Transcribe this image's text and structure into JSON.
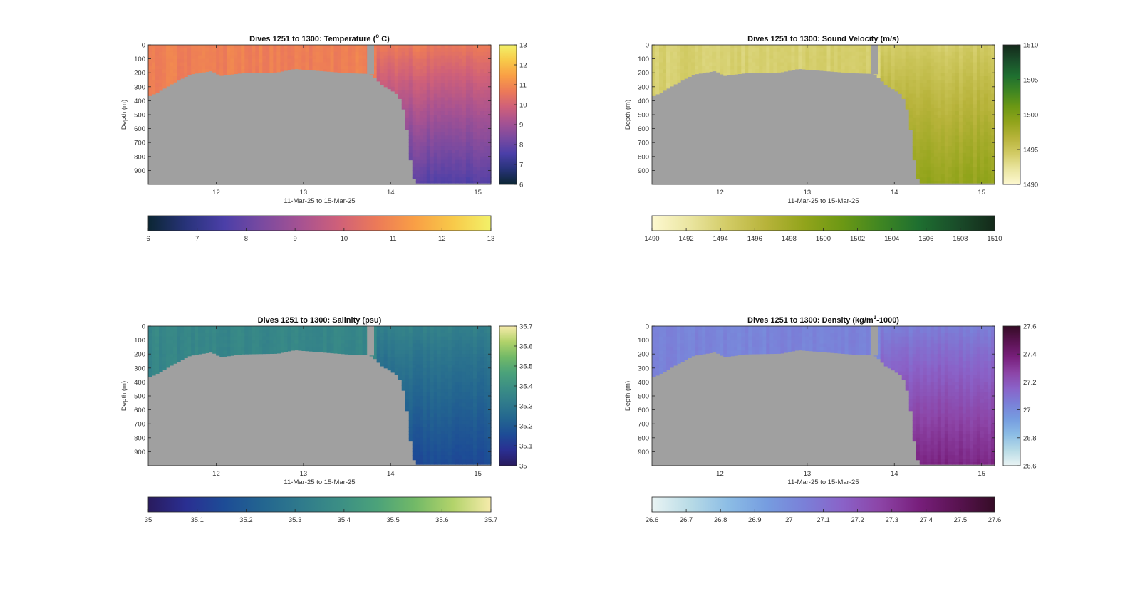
{
  "figure": {
    "xlabel": "11-Mar-25 to 15-Mar-25",
    "ylabel": "Depth (m)",
    "land_color": "#a0a0a0"
  },
  "chart_data": [
    {
      "id": "temp",
      "type": "heatmap",
      "title": "Dives 1251 to 1300: Temperature (",
      "title_sup": "o",
      "title_after": " C)",
      "xlabel": "11-Mar-25 to 15-Mar-25",
      "ylabel": "Depth (m)",
      "xlim": [
        11.22,
        15.15
      ],
      "ylim": [
        0,
        1000
      ],
      "xticks": [
        "12",
        "13",
        "14",
        "15"
      ],
      "yticks": [
        "0",
        "100",
        "200",
        "300",
        "400",
        "500",
        "600",
        "700",
        "800",
        "900"
      ],
      "colormap": [
        "#0b2633",
        "#28337a",
        "#4b3fa8",
        "#7a4aa0",
        "#a65292",
        "#cf6079",
        "#ec7a58",
        "#f99f45",
        "#f8c949",
        "#f2f169"
      ],
      "clim": [
        6,
        13
      ],
      "cbar_ticks": [
        "6",
        "7",
        "8",
        "9",
        "10",
        "11",
        "12",
        "13"
      ],
      "hbar_ticks": [
        "6",
        "7",
        "8",
        "9",
        "10",
        "11",
        "12",
        "13"
      ],
      "profile": {
        "surface": 10.7,
        "deep": 7.7,
        "left_surface": 10.8
      }
    },
    {
      "id": "sv",
      "type": "heatmap",
      "title": "Dives 1251 to 1300: Sound Velocity (m/s)",
      "title_sup": "",
      "title_after": "",
      "xlabel": "11-Mar-25 to 15-Mar-25",
      "ylabel": "Depth (m)",
      "xlim": [
        11.22,
        15.15
      ],
      "ylim": [
        0,
        1000
      ],
      "xticks": [
        "12",
        "13",
        "14",
        "15"
      ],
      "yticks": [
        "0",
        "100",
        "200",
        "300",
        "400",
        "500",
        "600",
        "700",
        "800",
        "900"
      ],
      "colormap": [
        "#fdf8d0",
        "#eae5a0",
        "#d2cb65",
        "#b7b33a",
        "#92a41b",
        "#6c9814",
        "#3f8622",
        "#1e6f30",
        "#1a4d2a",
        "#14291a"
      ],
      "clim": [
        1490,
        1510
      ],
      "cbar_ticks": [
        "1490",
        "1495",
        "1500",
        "1505",
        "1510"
      ],
      "hbar_ticks": [
        "1490",
        "1492",
        "1494",
        "1496",
        "1498",
        "1500",
        "1502",
        "1504",
        "1506",
        "1508",
        "1510"
      ],
      "profile": {
        "surface": 1494.3,
        "deep": 1498.8,
        "left_surface": 1494.0
      }
    },
    {
      "id": "sal",
      "type": "heatmap",
      "title": "Dives 1251 to 1300: Salinity (psu)",
      "title_sup": "",
      "title_after": "",
      "xlabel": "11-Mar-25 to 15-Mar-25",
      "ylabel": "Depth (m)",
      "xlim": [
        11.22,
        15.15
      ],
      "ylim": [
        0,
        1000
      ],
      "xticks": [
        "12",
        "13",
        "14",
        "15"
      ],
      "yticks": [
        "0",
        "100",
        "200",
        "300",
        "400",
        "500",
        "600",
        "700",
        "800",
        "900"
      ],
      "colormap": [
        "#291b5e",
        "#2a2f92",
        "#1d4c96",
        "#236590",
        "#2f7a8c",
        "#3b8e85",
        "#4ba27a",
        "#72b967",
        "#b2d36a",
        "#f6ebab"
      ],
      "clim": [
        35,
        35.7
      ],
      "cbar_ticks": [
        "35",
        "35.1",
        "35.2",
        "35.3",
        "35.4",
        "35.5",
        "35.6",
        "35.7"
      ],
      "hbar_ticks": [
        "35",
        "35.1",
        "35.2",
        "35.3",
        "35.4",
        "35.5",
        "35.6",
        "35.7"
      ],
      "profile": {
        "surface": 35.34,
        "deep": 35.15,
        "left_surface": 35.36
      }
    },
    {
      "id": "dens",
      "type": "heatmap",
      "title": "Dives 1251 to 1300: Density (kg/m",
      "title_sup": "3",
      "title_after": "-1000)",
      "xlabel": "11-Mar-25 to 15-Mar-25",
      "ylabel": "Depth (m)",
      "xlim": [
        11.22,
        15.15
      ],
      "ylim": [
        0,
        1000
      ],
      "xticks": [
        "12",
        "13",
        "14",
        "15"
      ],
      "yticks": [
        "0",
        "100",
        "200",
        "300",
        "400",
        "500",
        "600",
        "700",
        "800",
        "900"
      ],
      "colormap": [
        "#eaf4f4",
        "#b8dbe6",
        "#8cbde5",
        "#769de0",
        "#7a80d8",
        "#8a62c8",
        "#8c44a6",
        "#781f7c",
        "#5a1352",
        "#350c26"
      ],
      "clim": [
        26.6,
        27.6
      ],
      "cbar_ticks": [
        "26.6",
        "26.8",
        "27",
        "27.2",
        "27.4",
        "27.6"
      ],
      "hbar_ticks": [
        "26.6",
        "26.7",
        "26.8",
        "26.9",
        "27",
        "27.1",
        "27.2",
        "27.3",
        "27.4",
        "27.5",
        "27.6"
      ],
      "profile": {
        "surface": 27.05,
        "deep": 27.36,
        "left_surface": 27.03
      }
    }
  ]
}
